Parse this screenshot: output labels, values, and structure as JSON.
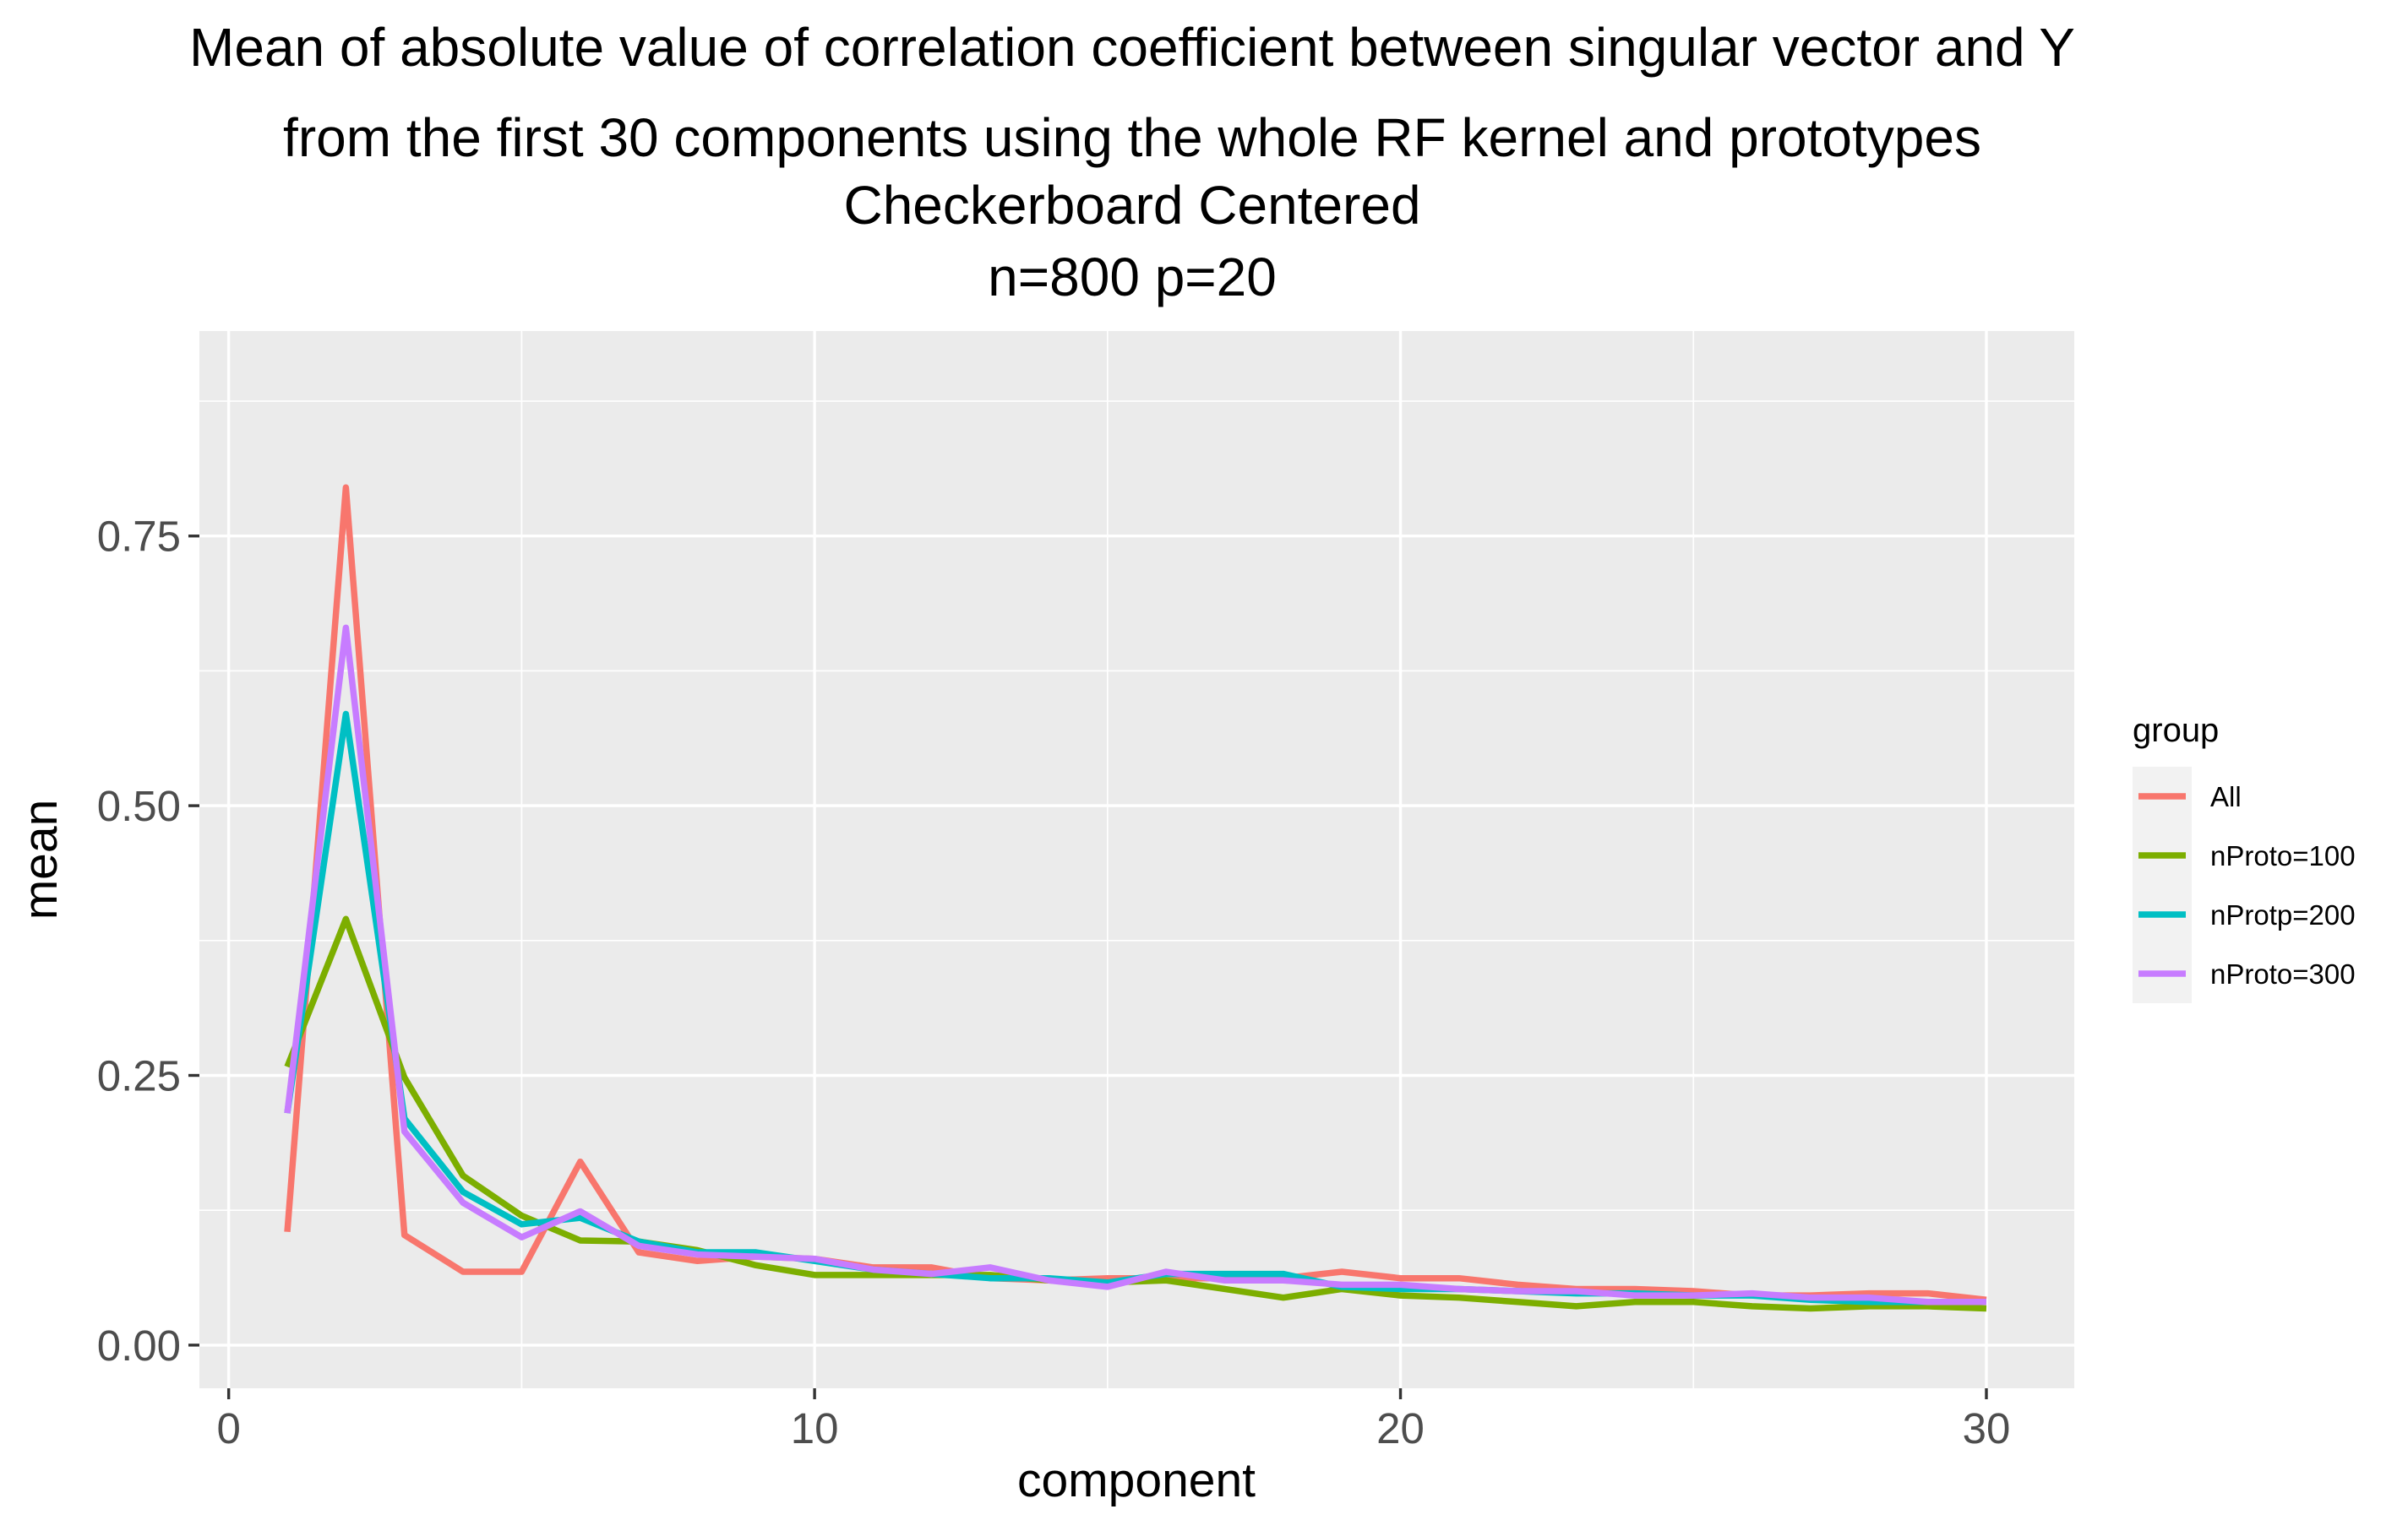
{
  "chart_data": {
    "type": "line",
    "title_lines": [
      "Mean of absolute value of correlation coefficient between singular vector and Y",
      "from the first 30 components using the whole RF kernel and prototypes",
      "Checkerboard Centered",
      "n=800 p=20"
    ],
    "xlabel": "component",
    "ylabel": "mean",
    "xlim": [
      -0.5,
      31.5
    ],
    "ylim": [
      -0.04,
      0.94
    ],
    "x_ticks": [
      0,
      10,
      20,
      30
    ],
    "x_tick_labels": [
      "0",
      "10",
      "20",
      "30"
    ],
    "y_ticks": [
      0.0,
      0.25,
      0.5,
      0.75
    ],
    "y_tick_labels": [
      "0.00",
      "0.25",
      "0.50",
      "0.75"
    ],
    "grid": true,
    "legend": {
      "title": "group",
      "placement": "right"
    },
    "x": [
      1,
      2,
      3,
      4,
      5,
      6,
      7,
      8,
      9,
      10,
      11,
      12,
      13,
      14,
      15,
      16,
      17,
      18,
      19,
      20,
      21,
      22,
      23,
      24,
      25,
      26,
      27,
      28,
      29,
      30
    ],
    "series": [
      {
        "name": "All",
        "color": "#F8766D",
        "values": [
          0.105,
          0.795,
          0.102,
          0.068,
          0.068,
          0.17,
          0.086,
          0.078,
          0.082,
          0.08,
          0.072,
          0.072,
          0.062,
          0.06,
          0.062,
          0.062,
          0.062,
          0.062,
          0.068,
          0.062,
          0.062,
          0.056,
          0.052,
          0.052,
          0.05,
          0.046,
          0.046,
          0.048,
          0.048,
          0.042
        ]
      },
      {
        "name": "nProto=100",
        "color": "#7CAE00",
        "values": [
          0.258,
          0.395,
          0.248,
          0.157,
          0.12,
          0.097,
          0.096,
          0.088,
          0.074,
          0.065,
          0.065,
          0.065,
          0.065,
          0.06,
          0.058,
          0.06,
          0.052,
          0.044,
          0.052,
          0.046,
          0.044,
          0.04,
          0.036,
          0.04,
          0.04,
          0.036,
          0.034,
          0.036,
          0.036,
          0.034
        ]
      },
      {
        "name": "nProtp=200",
        "color": "#00BFC4",
        "values": [
          0.215,
          0.585,
          0.21,
          0.142,
          0.112,
          0.118,
          0.096,
          0.086,
          0.086,
          0.078,
          0.07,
          0.066,
          0.062,
          0.062,
          0.058,
          0.066,
          0.066,
          0.066,
          0.054,
          0.052,
          0.052,
          0.05,
          0.048,
          0.048,
          0.046,
          0.046,
          0.042,
          0.04,
          0.04,
          0.04
        ]
      },
      {
        "name": "nProto=300",
        "color": "#C77CFF",
        "values": [
          0.215,
          0.665,
          0.198,
          0.132,
          0.1,
          0.124,
          0.092,
          0.084,
          0.082,
          0.08,
          0.07,
          0.066,
          0.072,
          0.06,
          0.054,
          0.068,
          0.06,
          0.06,
          0.056,
          0.056,
          0.052,
          0.05,
          0.05,
          0.046,
          0.046,
          0.048,
          0.044,
          0.044,
          0.04,
          0.04
        ]
      }
    ]
  }
}
